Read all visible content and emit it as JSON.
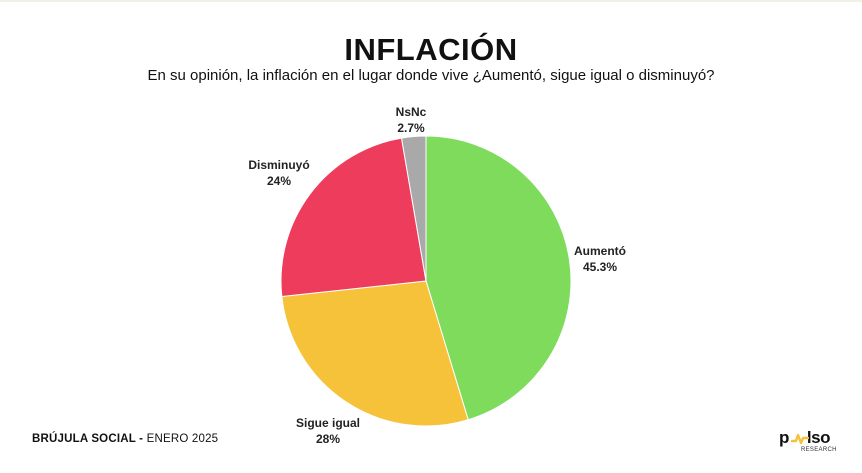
{
  "chart_data": {
    "type": "pie",
    "title": "INFLACIÓN",
    "subtitle": "En su opinión, la inflación en el lugar donde vive ¿Aumentó, sigue igual o disminuyó?",
    "slices": [
      {
        "label": "Aumentó",
        "value": 45.3,
        "value_label": "45.3%",
        "color": "#7edb5c"
      },
      {
        "label": "Sigue igual",
        "value": 28,
        "value_label": "28%",
        "color": "#f6c23a"
      },
      {
        "label": "Disminuyó",
        "value": 24,
        "value_label": "24%",
        "color": "#ee3c5c"
      },
      {
        "label": "NsNc",
        "value": 2.7,
        "value_label": "2.7%",
        "color": "#a9a9a9"
      }
    ]
  },
  "footer": {
    "brand": "BRÚJULA SOCIAL -",
    "date": "ENERO 2025"
  },
  "logo": {
    "wordmark_left": "p",
    "wordmark_right": "lso",
    "subtext": "RESEARCH",
    "accent_color": "#f6c23a"
  }
}
